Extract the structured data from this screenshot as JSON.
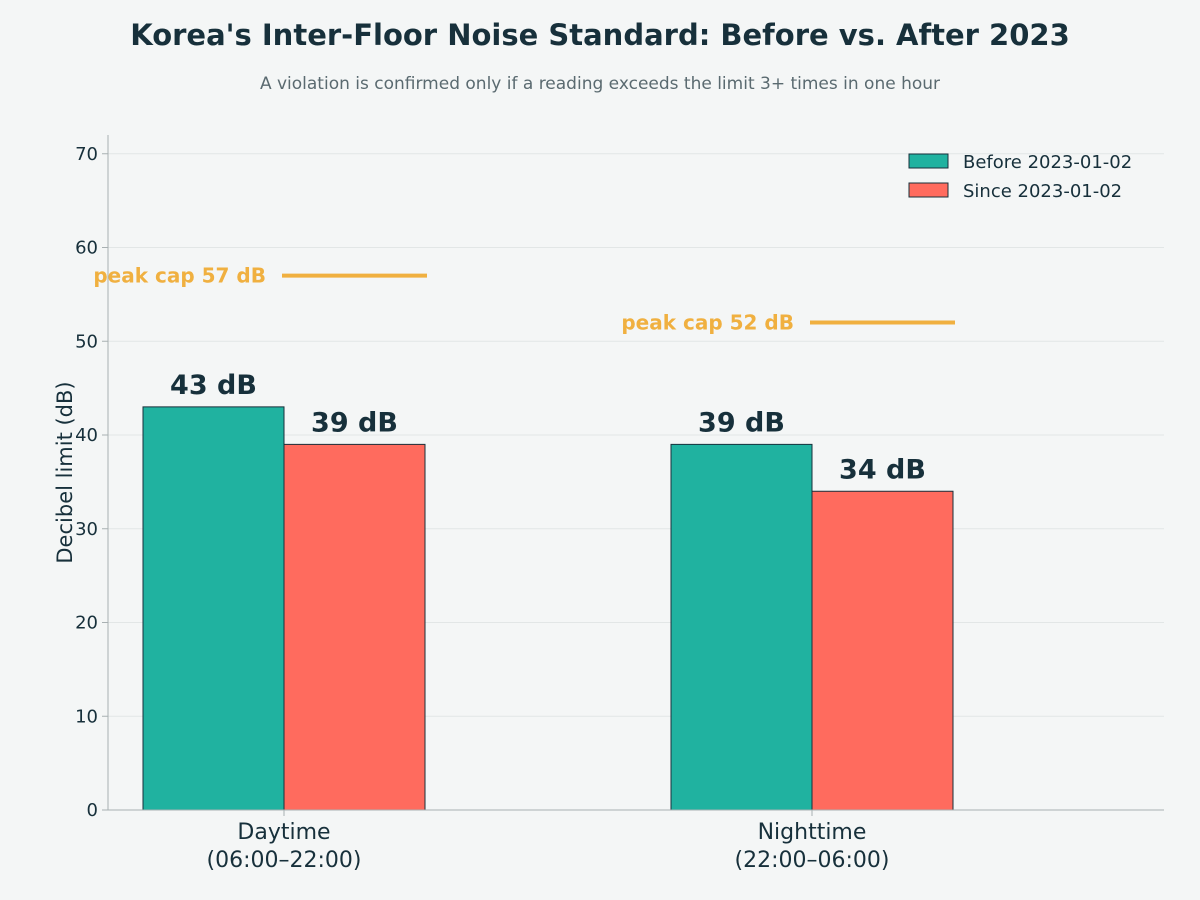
{
  "title": "Korea's Inter-Floor Noise Standard: Before vs. After 2023",
  "subtitle": "A violation is confirmed only if a reading exceeds the limit 3+ times in one hour",
  "colors": {
    "before": "#20b2a0",
    "since": "#ff6b5e",
    "peak_cap": "#f0b040",
    "text": "#17303b",
    "grid": "#e2e6e6",
    "axis": "#a8b0b2",
    "bar_edge": "#17303b"
  },
  "chart_data": {
    "type": "bar",
    "categories": [
      [
        "Daytime",
        "(06:00–22:00)"
      ],
      [
        "Nighttime",
        "(22:00–06:00)"
      ]
    ],
    "series": [
      {
        "name": "Before 2023-01-02",
        "values": [
          43,
          39
        ],
        "labels": [
          "43 dB",
          "39 dB"
        ]
      },
      {
        "name": "Since 2023-01-02",
        "values": [
          39,
          34
        ],
        "labels": [
          "39 dB",
          "34 dB"
        ]
      }
    ],
    "peak_caps": [
      {
        "category": 0,
        "value": 57,
        "label": "peak cap 57 dB"
      },
      {
        "category": 1,
        "value": 52,
        "label": "peak cap 52 dB"
      }
    ],
    "ylabel": "Decibel limit (dB)",
    "xlabel": "",
    "ylim": [
      0,
      72
    ],
    "yticks": [
      0,
      10,
      20,
      30,
      40,
      50,
      60,
      70
    ],
    "grid": true,
    "legend": "top-right"
  }
}
